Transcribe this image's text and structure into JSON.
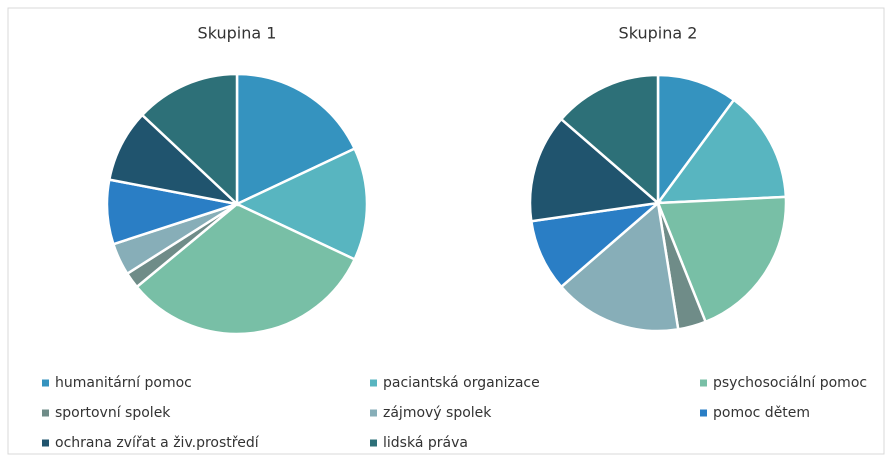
{
  "chart_data": [
    {
      "type": "pie",
      "title": "Skupina 1",
      "categories": [
        "humanitární pomoc",
        "paciantská organizace",
        "psychosociální pomoc",
        "sportovní spolek",
        "zájmový spolek",
        "pomoc dětem",
        "ochrana zvířat a živ.prostředí",
        "lidská práva"
      ],
      "values": [
        18,
        14,
        32,
        2,
        4,
        8,
        9,
        13
      ],
      "colors": [
        "#3593bf",
        "#58b5c0",
        "#78bfa6",
        "#6f8c88",
        "#87aeb8",
        "#2a7ec5",
        "#20546e",
        "#2d7078"
      ]
    },
    {
      "type": "pie",
      "title": "Skupina 2",
      "categories": [
        "humanitární pomoc",
        "paciantská organizace",
        "psychosociální pomoc",
        "sportovní spolek",
        "zájmový spolek",
        "pomoc dětem",
        "ochrana zvířat a živ.prostředí",
        "lidská práva"
      ],
      "values": [
        10,
        14,
        19.5,
        3.5,
        16,
        9,
        13.5,
        13.5
      ],
      "colors": [
        "#3593bf",
        "#58b5c0",
        "#78bfa6",
        "#6f8c88",
        "#87aeb8",
        "#2a7ec5",
        "#20546e",
        "#2d7078"
      ]
    }
  ]
}
